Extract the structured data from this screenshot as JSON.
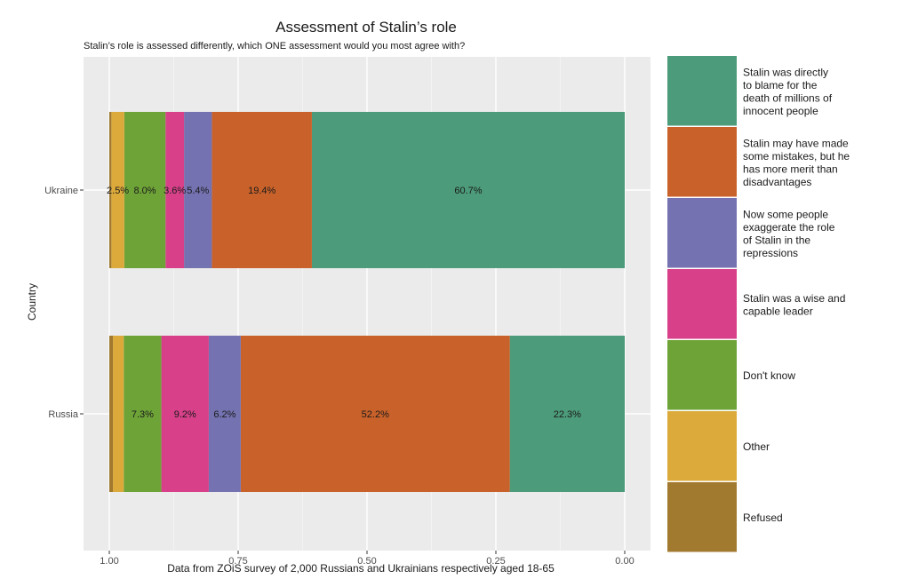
{
  "chart_data": {
    "type": "bar",
    "orientation": "horizontal",
    "stacked": true,
    "title": "Assessment of Stalin’s role",
    "subtitle": "Stalin’s role is assessed differently, which ONE assessment would you most agree with?",
    "xlabel": "Data from ZOiS survey of 2,000 Russians and Ukrainians respectively aged 18-65",
    "ylabel": "Country",
    "x_reversed": true,
    "xlim": [
      0,
      1
    ],
    "x_ticks": [
      "1.00",
      "0.75",
      "0.50",
      "0.25",
      "0.00"
    ],
    "categories": [
      "Ukraine",
      "Russia"
    ],
    "grid": true,
    "legend_position": "right",
    "series": [
      {
        "name": "Stalin was directly to blame for the death of millions of innocent people",
        "color": "#4c9b7a",
        "values": [
          0.607,
          0.223
        ],
        "labels": [
          "60.7%",
          "22.3%"
        ]
      },
      {
        "name": "Stalin may have made some mistakes, but he has more merit than disadvantages",
        "color": "#c9622a",
        "values": [
          0.194,
          0.522
        ],
        "labels": [
          "19.4%",
          "52.2%"
        ]
      },
      {
        "name": "Now some people exaggerate the role of Stalin in the repressions",
        "color": "#7472b0",
        "values": [
          0.054,
          0.062
        ],
        "labels": [
          "5.4%",
          "6.2%"
        ]
      },
      {
        "name": "Stalin was a wise and capable leader",
        "color": "#d8418a",
        "values": [
          0.036,
          0.092
        ],
        "labels": [
          "3.6%",
          "9.2%"
        ]
      },
      {
        "name": "Don't know",
        "color": "#6ea338",
        "values": [
          0.08,
          0.073
        ],
        "labels": [
          "8.0%",
          "7.3%"
        ]
      },
      {
        "name": "Other",
        "color": "#dcaa3a",
        "values": [
          0.025,
          0.021
        ],
        "labels": [
          "2.5%",
          ""
        ]
      },
      {
        "name": "Refused",
        "color": "#a17a30",
        "values": [
          0.004,
          0.007
        ],
        "labels": [
          "",
          ""
        ]
      }
    ],
    "legend_lines": [
      [
        "Stalin was directly",
        "to blame for the",
        "death of millions of",
        "innocent people"
      ],
      [
        "Stalin may have made",
        "some mistakes, but he",
        "has more merit than",
        "disadvantages"
      ],
      [
        "Now some people",
        "exaggerate the role",
        "of Stalin in the",
        "repressions"
      ],
      [
        "Stalin was a wise and",
        "capable leader"
      ],
      [
        "Don't know"
      ],
      [
        "Other"
      ],
      [
        "Refused"
      ]
    ]
  }
}
